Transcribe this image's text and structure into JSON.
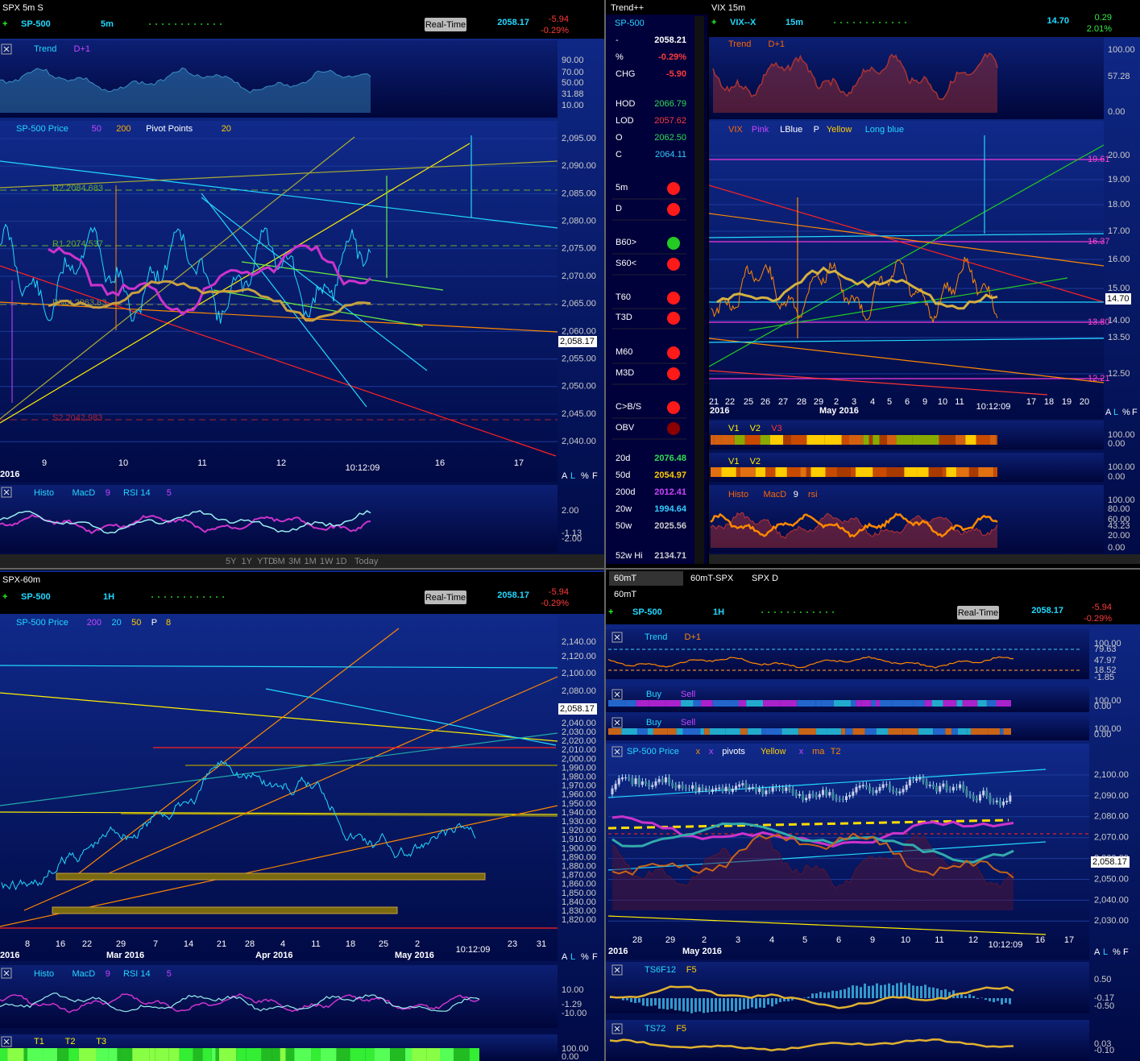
{
  "top_left": {
    "title": "SPX 5m S",
    "symbol": "SP-500",
    "interval": "5m",
    "price": "2058.17",
    "change": "-5.94",
    "change_pct": "-0.29%",
    "mode": "Real-Time",
    "trend_panel": {
      "labels": [
        "Trend",
        "D+1"
      ],
      "ticks": [
        "90.00",
        "70.00",
        "50.00",
        "31.88",
        "10.00"
      ]
    },
    "price_panel": {
      "labels": [
        "SP-500 Price",
        "50",
        "200",
        "Pivot Points",
        "20"
      ],
      "pivots": [
        "R2 2084.683",
        "R1 2074.537",
        "Pivot 2063.83",
        "S2 2042.983"
      ],
      "ticks": [
        "2,095.00",
        "2,090.00",
        "2,085.00",
        "2,080.00",
        "2,075.00",
        "2,070.00",
        "2,065.00",
        "2,060.00",
        "2,055.00",
        "2,050.00",
        "2,045.00",
        "2,040.00"
      ],
      "last": "2,058.17",
      "year": "2016",
      "x_labels": [
        "9",
        "10",
        "11",
        "12",
        "16",
        "17"
      ],
      "time": "10:12:09",
      "scale": [
        "A",
        "L",
        "%",
        "F"
      ]
    },
    "indicator_panel": {
      "labels": [
        "Histo",
        "MacD",
        "9",
        "RSI 14",
        "5"
      ],
      "ticks": [
        "2.00",
        "-1.13",
        "-2.00"
      ]
    },
    "ranges": [
      "5Y",
      "1Y",
      "YTD",
      "6M",
      "3M",
      "1M",
      "1W",
      "1D",
      "Today"
    ]
  },
  "trend_pp": {
    "title": "Trend++",
    "symbol": "SP-500",
    "rows": [
      {
        "label": "-",
        "value": "2058.21",
        "color": "#ffffff"
      },
      {
        "label": "%",
        "value": "-0.29%",
        "color": "#ff3b3b"
      },
      {
        "label": "CHG",
        "value": "-5.90",
        "color": "#ff3b3b"
      },
      {
        "label": "HOD",
        "value": "2066.79",
        "color": "#33dd55"
      },
      {
        "label": "LOD",
        "value": "2057.62",
        "color": "#ff3b3b"
      },
      {
        "label": "O",
        "value": "2062.50",
        "color": "#33dd55"
      },
      {
        "label": "C",
        "value": "2064.11",
        "color": "#33ccff"
      }
    ],
    "signals": [
      {
        "label": "5m",
        "color": "#ff1a1a"
      },
      {
        "label": "D",
        "color": "#ff1a1a"
      },
      {
        "label": "B60>",
        "color": "#22cc22"
      },
      {
        "label": "S60<",
        "color": "#ff1a1a"
      },
      {
        "label": "T60",
        "color": "#ff1a1a"
      },
      {
        "label": "T3D",
        "color": "#ff1a1a"
      },
      {
        "label": "M60",
        "color": "#ff1a1a"
      },
      {
        "label": "M3D",
        "color": "#ff1a1a"
      },
      {
        "label": "C>B/S",
        "color": "#ff1a1a"
      },
      {
        "label": "OBV",
        "color": "#8b0000"
      }
    ],
    "averages": [
      {
        "label": "20d",
        "value": "2076.48",
        "color": "#33dd55"
      },
      {
        "label": "50d",
        "value": "2054.97",
        "color": "#ffcc00"
      },
      {
        "label": "200d",
        "value": "2012.41",
        "color": "#cc44ff"
      },
      {
        "label": "20w",
        "value": "1994.64",
        "color": "#33ccff"
      },
      {
        "label": "50w",
        "value": "2025.56",
        "color": "#cccccc"
      },
      {
        "label": "52w Hi",
        "value": "2134.71",
        "color": "#cccccc"
      }
    ]
  },
  "vix": {
    "title": "VIX 15m",
    "symbol": "VIX--X",
    "interval": "15m",
    "price": "14.70",
    "change": "0.29",
    "change_pct": "2.01%",
    "trend_panel": {
      "labels": [
        "Trend",
        "D+1"
      ],
      "ticks": [
        "100.00",
        "57.28",
        "0.00"
      ]
    },
    "price_panel": {
      "labels": [
        "VIX",
        "Pink",
        "LBlue",
        "P",
        "Yellow",
        "Long blue"
      ],
      "ticks": [
        "20.00",
        "19.00",
        "18.00",
        "17.00",
        "16.00",
        "15.00",
        "14.00",
        "13.50",
        "12.50"
      ],
      "levels": [
        "19.61",
        "16.37",
        "13.80",
        "12.21"
      ],
      "last": "14.70",
      "x_labels": [
        "21",
        "22",
        "25",
        "26",
        "27",
        "28",
        "29",
        "2",
        "3",
        "4",
        "5",
        "6",
        "9",
        "10",
        "11",
        "17",
        "18",
        "19",
        "20"
      ],
      "year": "2016",
      "month": "May 2016",
      "time": "10:12:09",
      "scale": [
        "A",
        "L",
        "%",
        "F"
      ]
    },
    "v_panel_1": {
      "labels": [
        "V1",
        "V2",
        "V3"
      ],
      "ticks": [
        "100.00",
        "0.00"
      ]
    },
    "v_panel_2": {
      "labels": [
        "V1",
        "V2"
      ],
      "ticks": [
        "100.00",
        "0.00"
      ]
    },
    "indicator_panel": {
      "labels": [
        "Histo",
        "MacD",
        "9",
        "rsi"
      ],
      "ticks": [
        "100.00",
        "80.00",
        "60.00",
        "43.23",
        "20.00",
        "0.00"
      ]
    }
  },
  "bottom_left": {
    "title": "SPX-60m",
    "symbol": "SP-500",
    "interval": "1H",
    "price": "2058.17",
    "change": "-5.94",
    "change_pct": "-0.29%",
    "mode": "Real-Time",
    "price_panel": {
      "labels": [
        "SP-500 Price",
        "200",
        "20",
        "50",
        "P",
        "8"
      ],
      "ticks_top": [
        "2,140.00",
        "2,120.00",
        "2,100.00",
        "2,080.00"
      ],
      "ticks": [
        "2,040.00",
        "2,030.00",
        "2,020.00",
        "2,010.00",
        "2,000.00",
        "1,990.00",
        "1,980.00",
        "1,970.00",
        "1,960.00",
        "1,950.00",
        "1,940.00",
        "1,930.00",
        "1,920.00",
        "1,910.00",
        "1,900.00",
        "1,890.00",
        "1,880.00",
        "1,870.00",
        "1,860.00",
        "1,850.00",
        "1,840.00",
        "1,830.00",
        "1,820.00"
      ],
      "last": "2,058.17",
      "x_labels": [
        "8",
        "16",
        "22",
        "29",
        "7",
        "14",
        "21",
        "28",
        "4",
        "11",
        "18",
        "25",
        "2",
        "23",
        "31"
      ],
      "months": [
        "2016",
        "Mar 2016",
        "Apr 2016",
        "May 2016"
      ],
      "time": "10:12:09",
      "scale": [
        "A",
        "L",
        "%",
        "F"
      ]
    },
    "indicator_panel": {
      "labels": [
        "Histo",
        "MacD",
        "9",
        "RSI 14",
        "5"
      ],
      "ticks": [
        "10.00",
        "-1.29",
        "-10.00"
      ]
    },
    "t_panel": {
      "labels": [
        "T1",
        "T2",
        "T3"
      ],
      "ticks": [
        "100.00",
        "0.00"
      ]
    }
  },
  "bottom_right": {
    "tabs": [
      "60mT",
      "60mT-SPX",
      "SPX D"
    ],
    "title": "60mT",
    "symbol": "SP-500",
    "interval": "1H",
    "price": "2058.17",
    "change": "-5.94",
    "change_pct": "-0.29%",
    "mode": "Real-Time",
    "trend_panel": {
      "labels": [
        "Trend",
        "D+1"
      ],
      "ticks": [
        "100.00",
        "79.63",
        "47.97",
        "18.52",
        "-1.85"
      ]
    },
    "buy_sell_1": {
      "labels": [
        "Buy",
        "Sell"
      ],
      "ticks": [
        "100.00",
        "0.00"
      ]
    },
    "buy_sell_2": {
      "labels": [
        "Buy",
        "Sell"
      ],
      "ticks": [
        "100.00",
        "0.00"
      ]
    },
    "price_panel": {
      "labels": [
        "SP-500 Price",
        "x",
        "x",
        "pivots",
        "Yellow",
        "x",
        "ma",
        "T2"
      ],
      "ticks": [
        "2,100.00",
        "2,090.00",
        "2,080.00",
        "2,070.00",
        "2,060.00",
        "2,050.00",
        "2,040.00",
        "2,030.00"
      ],
      "last": "2,058.17",
      "x_labels": [
        "28",
        "29",
        "2",
        "3",
        "4",
        "5",
        "6",
        "9",
        "10",
        "11",
        "12",
        "16",
        "17"
      ],
      "months": [
        "2016",
        "May 2016"
      ],
      "time": "10:12:09",
      "scale": [
        "A",
        "L",
        "%",
        "F"
      ]
    },
    "ts_panel_1": {
      "labels": [
        "TS6F12",
        "F5"
      ],
      "ticks": [
        "0.50",
        "-0.17",
        "-0.50"
      ]
    },
    "ts_panel_2": {
      "labels": [
        "TS72",
        "F5"
      ],
      "ticks": [
        "0.03",
        "-0.10"
      ]
    }
  }
}
